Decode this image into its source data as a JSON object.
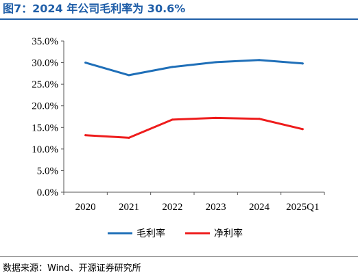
{
  "header": {
    "title": "图7：2024 年公司毛利率为 30.6%"
  },
  "footer": {
    "source": "数据来源：Wind、开源证券研究所"
  },
  "colors": {
    "accent": "#1f5ea8",
    "series_1": "#1f6fb8",
    "series_2": "#ee1c1c"
  },
  "chart_data": {
    "type": "line",
    "title": "",
    "xlabel": "",
    "ylabel": "",
    "categories": [
      "2020",
      "2021",
      "2022",
      "2023",
      "2024",
      "2025Q1"
    ],
    "ylim": [
      0,
      35
    ],
    "yticks": [
      "0.0%",
      "5.0%",
      "10.0%",
      "15.0%",
      "20.0%",
      "25.0%",
      "30.0%",
      "35.0%"
    ],
    "ytick_values": [
      0,
      5,
      10,
      15,
      20,
      25,
      30,
      35
    ],
    "grid": false,
    "legend_position": "bottom",
    "series": [
      {
        "name": "毛利率",
        "color": "#1f6fb8",
        "values": [
          30.0,
          27.1,
          29.0,
          30.1,
          30.6,
          29.8
        ]
      },
      {
        "name": "净利率",
        "color": "#ee1c1c",
        "values": [
          13.2,
          12.6,
          16.8,
          17.2,
          17.0,
          14.6
        ]
      }
    ]
  }
}
